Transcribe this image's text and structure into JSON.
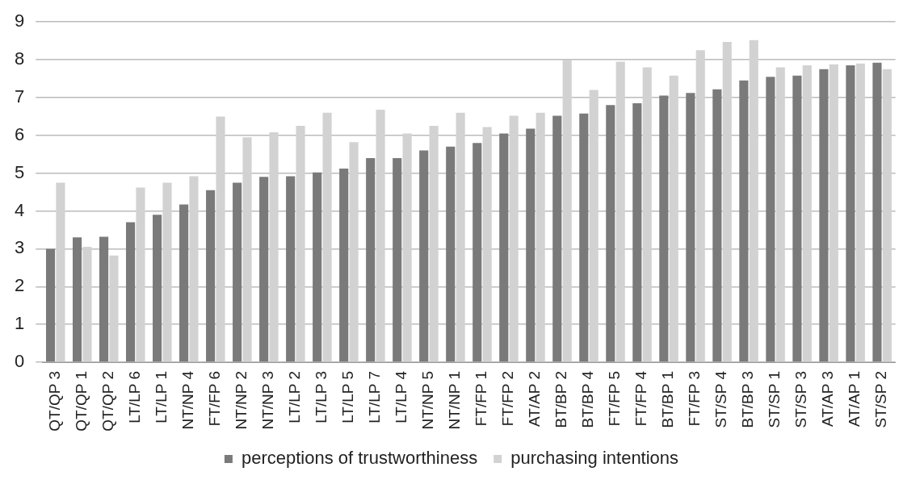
{
  "chart_data": {
    "type": "bar",
    "categories": [
      "QT/QP 3",
      "QT/QP 1",
      "QT/QP 2",
      "LT/LP 6",
      "LT/LP 1",
      "NT/NP 4",
      "FT/FP 6",
      "NT/NP 2",
      "NT/NP 3",
      "LT/LP 2",
      "LT/LP 3",
      "LT/LP 5",
      "LT/LP 7",
      "LT/LP 4",
      "NT/NP 5",
      "NT/NP 1",
      "FT/FP 1",
      "FT/FP 2",
      "AT/AP 2",
      "BT/BP 2",
      "BT/BP 4",
      "FT/FP 5",
      "FT/FP 4",
      "BT/BP 1",
      "FT/FP 3",
      "ST/SP 4",
      "BT/BP 3",
      "ST/SP 1",
      "ST/SP 3",
      "AT/AP 3",
      "AT/AP 1",
      "ST/SP 2"
    ],
    "series": [
      {
        "name": "perceptions of trustworthiness",
        "color": "#7a7a7a",
        "values": [
          3.0,
          3.3,
          3.32,
          3.7,
          3.9,
          4.17,
          4.55,
          4.75,
          4.9,
          4.92,
          5.02,
          5.12,
          5.4,
          5.4,
          5.6,
          5.7,
          5.8,
          6.05,
          6.18,
          6.52,
          6.58,
          6.8,
          6.85,
          7.05,
          7.12,
          7.22,
          7.45,
          7.55,
          7.58,
          7.75,
          7.85,
          7.92
        ]
      },
      {
        "name": "purchasing intentions",
        "color": "#d2d2d2",
        "values": [
          4.75,
          3.05,
          2.82,
          4.62,
          4.75,
          4.92,
          6.5,
          5.95,
          6.08,
          6.25,
          6.6,
          5.82,
          6.68,
          6.05,
          6.25,
          6.6,
          6.22,
          6.52,
          6.6,
          8.0,
          7.2,
          7.95,
          7.8,
          7.58,
          8.25,
          8.47,
          8.52,
          7.8,
          7.85,
          7.88,
          7.9,
          7.75
        ]
      }
    ],
    "ylim": [
      0,
      9
    ],
    "yticks": [
      0,
      1,
      2,
      3,
      4,
      5,
      6,
      7,
      8,
      9
    ],
    "grid": "y",
    "legend": "bottom"
  }
}
